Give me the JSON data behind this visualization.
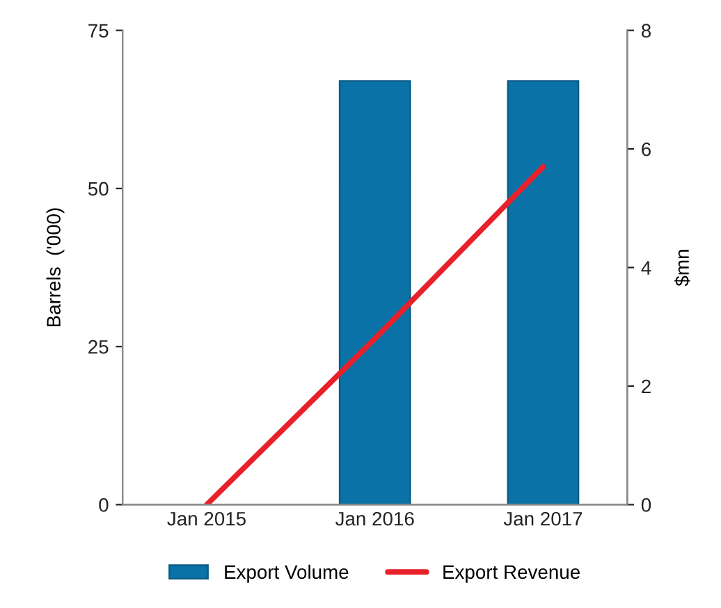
{
  "chart_data": {
    "type": "bar",
    "categories": [
      "Jan 2015",
      "Jan 2016",
      "Jan 2017"
    ],
    "series": [
      {
        "name": "Export Volume",
        "color": "#0a72a6",
        "values": [
          null,
          67,
          67
        ]
      },
      {
        "name": "Export Revenue",
        "type": "line",
        "axis": "y2",
        "color": "#e8202a",
        "values": [
          0,
          2.8,
          5.7
        ]
      }
    ],
    "ylabel": "Barrels  ('000)",
    "y2label": "$mn",
    "ylim": [
      0,
      75
    ],
    "yticks": [
      0,
      25,
      50,
      75
    ],
    "y2lim": [
      0,
      8
    ],
    "y2ticks": [
      0,
      2,
      4,
      6,
      8
    ],
    "grid": false,
    "legend": "bottom",
    "marker": "none",
    "line_style": "solid"
  }
}
